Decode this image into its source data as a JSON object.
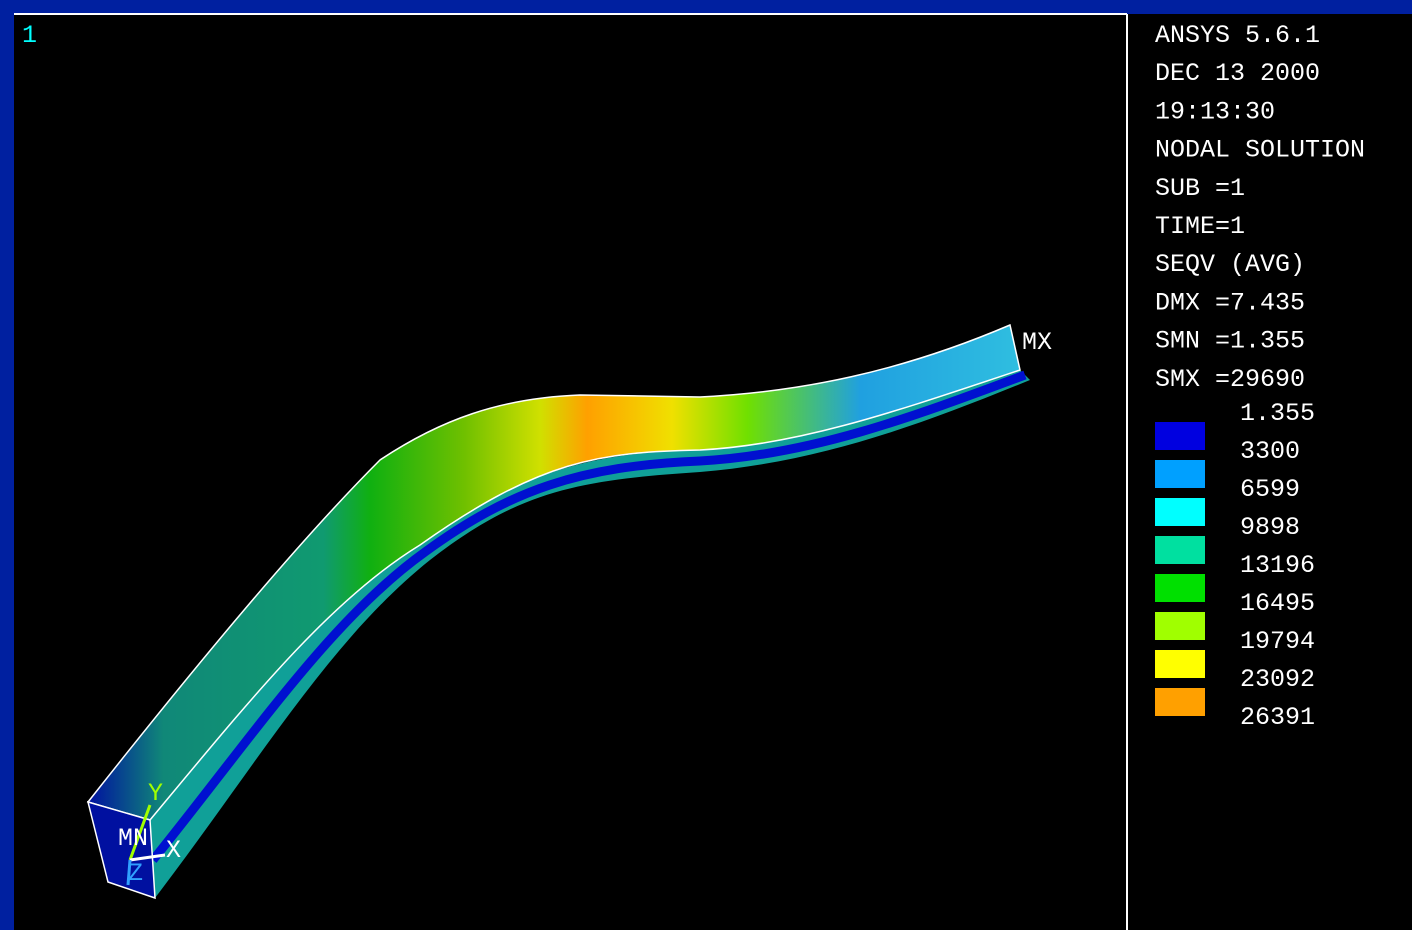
{
  "window_number": "1",
  "info": [
    "ANSYS 5.6.1",
    "DEC 13 2000",
    "19:13:30",
    "NODAL SOLUTION",
    "SUB =1",
    "TIME=1",
    "SEQV      (AVG)",
    "DMX =7.435",
    "SMN =1.355",
    "SMX =29690"
  ],
  "legend": {
    "levels": [
      "1.355",
      "3300",
      "6599",
      "9898",
      "13196",
      "16495",
      "19794",
      "23092",
      "26391"
    ],
    "colors": [
      "#0000e0",
      "#00a0ff",
      "#00ffff",
      "#00e0a0",
      "#00e000",
      "#a0ff00",
      "#ffff00",
      "#ffa000"
    ]
  },
  "labels": {
    "max": "MX",
    "min": "MN",
    "x_axis": "X",
    "y_axis": "Y",
    "z_axis": "Z"
  }
}
